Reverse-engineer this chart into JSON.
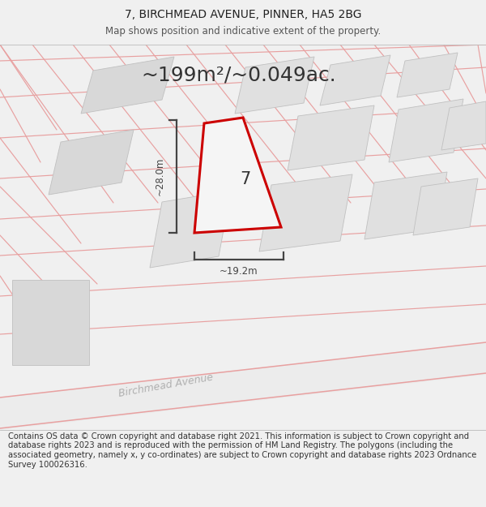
{
  "title": "7, BIRCHMEAD AVENUE, PINNER, HA5 2BG",
  "subtitle": "Map shows position and indicative extent of the property.",
  "area_text": "~199m²/~0.049ac.",
  "dim_height_label": "~28.0m",
  "dim_width_label": "~19.2m",
  "property_label": "7",
  "road_label": "Birchmead Avenue",
  "footer": "Contains OS data © Crown copyright and database right 2021. This information is subject to Crown copyright and database rights 2023 and is reproduced with the permission of HM Land Registry. The polygons (including the associated geometry, namely x, y co-ordinates) are subject to Crown copyright and database rights 2023 Ordnance Survey 100026316.",
  "bg_color": "#f0f0f0",
  "map_bg": "#ffffff",
  "property_fill": "#f5f5f5",
  "property_edge": "#cc0000",
  "building_fill": "#d8d8d8",
  "building_edge": "#c0c0c0",
  "pink_line": "#e8a0a0",
  "dim_line_color": "#444444",
  "text_color": "#333333",
  "road_label_color": "#b0b0b0",
  "title_fontsize": 10,
  "subtitle_fontsize": 8.5,
  "area_fontsize": 18,
  "property_label_fontsize": 15,
  "dim_fontsize": 8.5,
  "road_label_fontsize": 9,
  "footer_fontsize": 7.2
}
